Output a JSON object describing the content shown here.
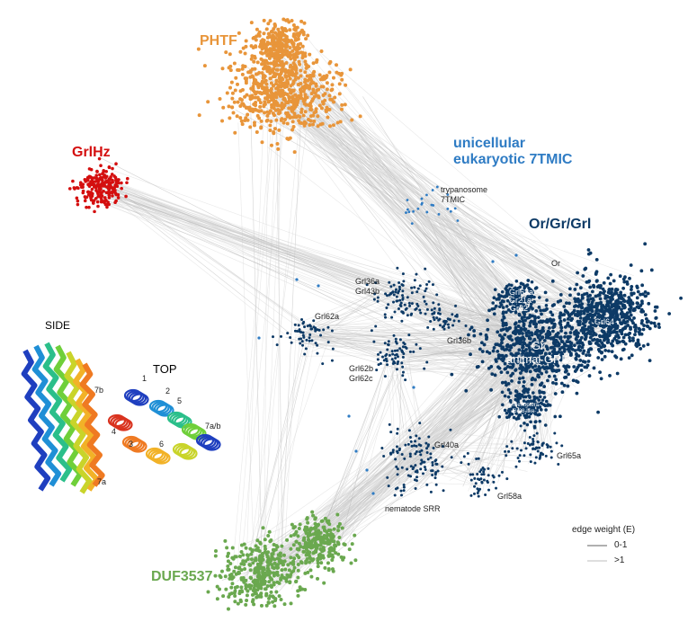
{
  "colors": {
    "phtf": "#e8953a",
    "grlhz": "#d40f0f",
    "unicellular": "#2f7cc4",
    "orgrgrl": "#0d3a66",
    "duf": "#6aa84f",
    "edge_light": "#d6d6d6",
    "edge_dark": "#b0b0b0"
  },
  "families": {
    "phtf": "PHTF",
    "grlhz": "GrlHz",
    "unicellular_line1": "unicellular",
    "unicellular_line2": "eukaryotic 7TMIC",
    "orgrgrl": "Or/Gr/Grl",
    "duf": "DUF3537"
  },
  "clusters": {
    "trypanosome_line1": "trypanosome",
    "trypanosome_line2": "7TMIC",
    "or": "Or",
    "grl36a": "Grl36a",
    "grl43b": "Grl43b",
    "grl62a": "Grl62a",
    "grl63a": "Grl63a",
    "grl21a": "Gr21a",
    "gr22": "Gr22",
    "grl64": "Grl64",
    "grl36b": "Grl36b",
    "gr": "Gr",
    "animal_grl": "animal GRL",
    "grl62b": "Grl62b",
    "grl62c": "Grl62c",
    "hymenoptera_line1": "Hymenoptera",
    "hymenoptera_line2": "Gr28-like",
    "grl40a": "Grl40a",
    "grl65a": "Grl65a",
    "grl58a": "Grl58a",
    "nematode_srr": "nematode SRR"
  },
  "structure": {
    "side": "SIDE",
    "top": "TOP",
    "helix_7b": "7b",
    "helix_7a": "7a",
    "top_1": "1",
    "top_2": "2",
    "top_3": "3",
    "top_4": "4",
    "top_5": "5",
    "top_6": "6",
    "top_7ab": "7a/b"
  },
  "legend": {
    "title": "edge weight (E)",
    "row1": "0-1",
    "row2": ">1"
  }
}
